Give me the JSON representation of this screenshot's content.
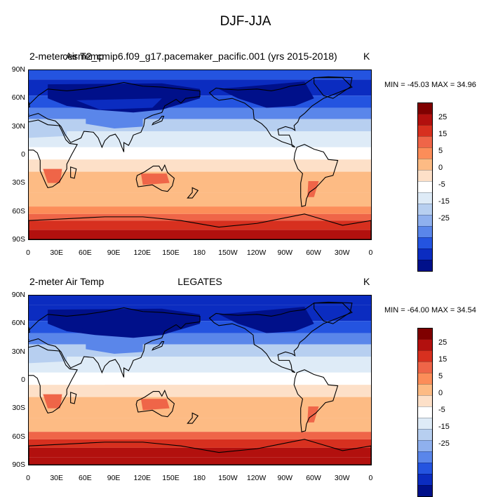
{
  "figure": {
    "title": "DJF-JJA"
  },
  "panels": [
    {
      "left_label": "2-meter Air Temp",
      "center_label": "cesm2_cmip6.f09_g17.pacemaker_pacific.001 (yrs 2015-2018)",
      "right_label": "K",
      "minmax": "MIN = -45.03 MAX =  34.96",
      "min": -45.03,
      "max": 34.96
    },
    {
      "left_label": "2-meter Air Temp",
      "center_label": "LEGATES",
      "right_label": "K",
      "minmax": "MIN = -64.00 MAX =  34.54",
      "min": -64.0,
      "max": 34.54
    }
  ],
  "axes": {
    "lat_ticks": [
      "90N",
      "60N",
      "30N",
      "0",
      "30S",
      "60S",
      "90S"
    ],
    "lon_ticks": [
      "0",
      "30E",
      "60E",
      "90E",
      "120E",
      "150E",
      "180",
      "150W",
      "120W",
      "90W",
      "60W",
      "30W",
      "0"
    ]
  },
  "colorbar": {
    "labels": [
      "25",
      "15",
      "5",
      "0",
      "-5",
      "-15",
      "-25"
    ],
    "colors": [
      "#7f0000",
      "#b2100e",
      "#d7301f",
      "#ef6548",
      "#fc8d59",
      "#fdbb84",
      "#fde0c8",
      "#ffffff",
      "#deebf7",
      "#b7cff0",
      "#8fb0ee",
      "#5a86ea",
      "#2454e0",
      "#0b2cc0",
      "#00108a"
    ]
  },
  "chart_data": [
    {
      "type": "heatmap",
      "title": "2-meter Air Temp",
      "subtitle": "cesm2_cmip6.f09_g17.pacemaker_pacific.001 (yrs 2015-2018)",
      "units": "K",
      "x_range": [
        0,
        360
      ],
      "y_range": [
        -90,
        90
      ],
      "zonal_mean_profile": {
        "lat": [
          90,
          75,
          60,
          45,
          30,
          15,
          0,
          -15,
          -30,
          -45,
          -60,
          -75,
          -90
        ],
        "value": [
          -24,
          -27,
          -24,
          -17,
          -8,
          -3,
          1,
          4,
          6,
          7,
          13,
          22,
          27
        ]
      },
      "min": -45.03,
      "max": 34.96
    },
    {
      "type": "heatmap",
      "title": "2-meter Air Temp",
      "subtitle": "LEGATES",
      "units": "K",
      "x_range": [
        0,
        360
      ],
      "y_range": [
        -90,
        90
      ],
      "zonal_mean_profile": {
        "lat": [
          90,
          75,
          60,
          45,
          30,
          15,
          0,
          -15,
          -30,
          -45,
          -60,
          -75,
          -90
        ],
        "value": [
          -25,
          -30,
          -26,
          -18,
          -9,
          -3,
          1,
          4,
          6,
          7,
          20,
          25,
          27
        ]
      },
      "min": -64.0,
      "max": 34.54
    }
  ]
}
